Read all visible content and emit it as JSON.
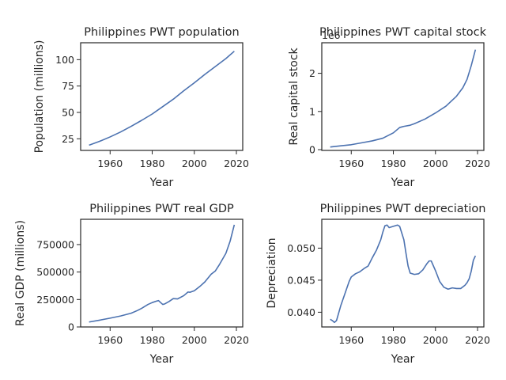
{
  "chart_data": [
    {
      "type": "line",
      "title": "Philippines PWT population",
      "xlabel": "Year",
      "ylabel": "Population (millions)",
      "xlim": [
        1946,
        2023
      ],
      "ylim": [
        14,
        116
      ],
      "xticks": [
        1960,
        1980,
        2000,
        2020
      ],
      "yticks": [
        25,
        50,
        75,
        100
      ],
      "ytick_labels": [
        "25",
        "50",
        "75",
        "100"
      ],
      "offset_label": "",
      "grid": false,
      "series": [
        {
          "color": "#4c72b0",
          "x": [
            1950,
            1955,
            1960,
            1965,
            1970,
            1975,
            1980,
            1985,
            1990,
            1995,
            2000,
            2005,
            2010,
            2015,
            2019
          ],
          "y": [
            19,
            22.6,
            26.8,
            31.5,
            36.8,
            42.5,
            48.5,
            55.5,
            62.5,
            70.5,
            78,
            86,
            93.5,
            101,
            108
          ]
        }
      ]
    },
    {
      "type": "line",
      "title": "Philippines PWT capital stock",
      "xlabel": "Year",
      "ylabel": "Real capital stock",
      "xlim": [
        1946,
        2023
      ],
      "ylim": [
        -0.02,
        2.8
      ],
      "xticks": [
        1960,
        1980,
        2000,
        2020
      ],
      "yticks": [
        0,
        1,
        2
      ],
      "ytick_labels": [
        "0",
        "1",
        "2"
      ],
      "offset_label": "1e6",
      "grid": false,
      "series": [
        {
          "color": "#4c72b0",
          "x": [
            1950,
            1955,
            1960,
            1965,
            1970,
            1975,
            1980,
            1983,
            1985,
            1988,
            1990,
            1995,
            2000,
            2005,
            2010,
            2013,
            2015,
            2017,
            2019
          ],
          "y": [
            0.07,
            0.1,
            0.13,
            0.18,
            0.23,
            0.3,
            0.44,
            0.58,
            0.61,
            0.64,
            0.68,
            0.8,
            0.96,
            1.14,
            1.4,
            1.62,
            1.84,
            2.2,
            2.62
          ]
        }
      ]
    },
    {
      "type": "line",
      "title": "Philippines PWT real GDP",
      "xlabel": "Year",
      "ylabel": "Real GDP (millions)",
      "xlim": [
        1946,
        2023
      ],
      "ylim": [
        0,
        980000
      ],
      "xticks": [
        1960,
        1980,
        2000,
        2020
      ],
      "yticks": [
        0,
        250000,
        500000,
        750000
      ],
      "ytick_labels": [
        "0",
        "250000",
        "500000",
        "750000"
      ],
      "offset_label": "",
      "grid": false,
      "series": [
        {
          "color": "#4c72b0",
          "x": [
            1950,
            1955,
            1960,
            1965,
            1970,
            1973,
            1975,
            1978,
            1980,
            1982,
            1983,
            1984,
            1985,
            1986,
            1988,
            1990,
            1992,
            1995,
            1997,
            1998,
            2000,
            2003,
            2005,
            2008,
            2010,
            2012,
            2015,
            2017,
            2019
          ],
          "y": [
            45000,
            62000,
            80000,
            100000,
            125000,
            150000,
            170000,
            205000,
            222000,
            235000,
            240000,
            222000,
            205000,
            210000,
            232000,
            258000,
            255000,
            285000,
            318000,
            316000,
            330000,
            375000,
            410000,
            480000,
            510000,
            570000,
            670000,
            780000,
            930000
          ]
        }
      ]
    },
    {
      "type": "line",
      "title": "Philippines PWT depreciation",
      "xlabel": "Year",
      "ylabel": "Depreciation",
      "xlim": [
        1946,
        2023
      ],
      "ylim": [
        0.0377,
        0.0545
      ],
      "xticks": [
        1960,
        1980,
        2000,
        2020
      ],
      "yticks": [
        0.04,
        0.045,
        0.05
      ],
      "ytick_labels": [
        "0.040",
        "0.045",
        "0.050"
      ],
      "offset_label": "",
      "grid": false,
      "series": [
        {
          "color": "#4c72b0",
          "x": [
            1950,
            1951,
            1952,
            1953,
            1955,
            1957,
            1959,
            1960,
            1962,
            1964,
            1966,
            1968,
            1970,
            1972,
            1974,
            1975,
            1976,
            1977,
            1978,
            1980,
            1982,
            1983,
            1985,
            1986,
            1987,
            1988,
            1990,
            1992,
            1994,
            1996,
            1997,
            1998,
            2000,
            2002,
            2004,
            2006,
            2008,
            2010,
            2012,
            2014,
            2015,
            2016,
            2017,
            2018,
            2019
          ],
          "y": [
            0.0389,
            0.0387,
            0.0384,
            0.0387,
            0.041,
            0.0429,
            0.0448,
            0.0455,
            0.046,
            0.0463,
            0.0468,
            0.0472,
            0.0485,
            0.0497,
            0.0513,
            0.0525,
            0.0535,
            0.0536,
            0.0532,
            0.0534,
            0.0536,
            0.0534,
            0.0513,
            0.0492,
            0.0472,
            0.0461,
            0.0459,
            0.046,
            0.0466,
            0.0476,
            0.048,
            0.048,
            0.0465,
            0.0448,
            0.0439,
            0.0436,
            0.0438,
            0.0437,
            0.0437,
            0.0442,
            0.0446,
            0.0452,
            0.0464,
            0.0481,
            0.0488
          ]
        }
      ]
    }
  ]
}
